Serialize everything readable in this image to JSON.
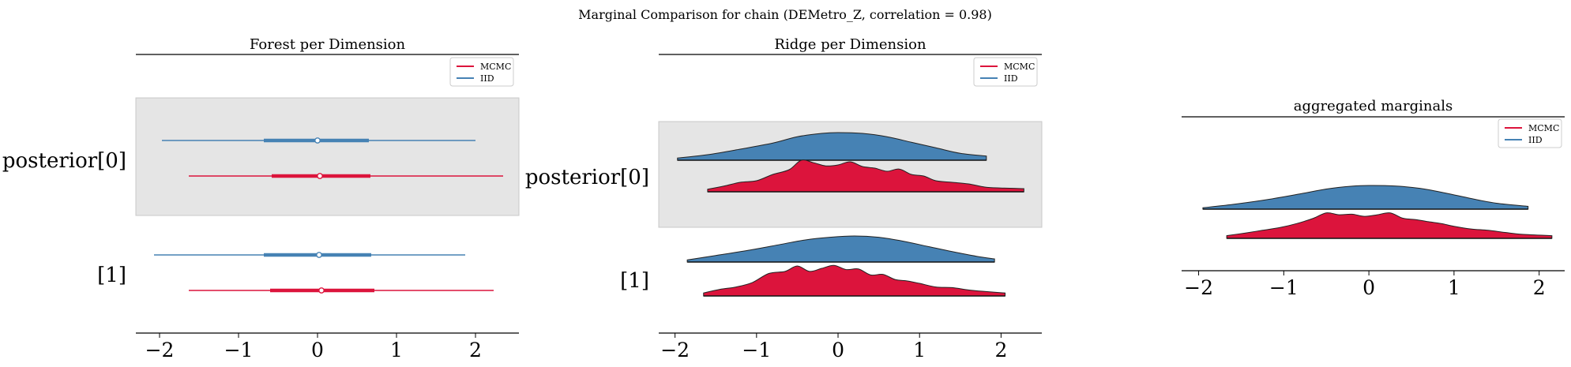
{
  "suptitle": "Marginal Comparison for chain (DEMetro_Z, correlation = 0.98)",
  "colors": {
    "mcmc": "#dc143c",
    "iid": "#4682b4",
    "shade": "#e5e5e5"
  },
  "chart_data": [
    {
      "type": "forest",
      "title": "Forest per Dimension",
      "xlim": [
        -2.3,
        2.55
      ],
      "xticks": [
        -2,
        -1,
        0,
        1,
        2
      ],
      "xtick_labels": [
        "−2",
        "−1",
        "0",
        "1",
        "2"
      ],
      "legend": {
        "position": "top-right",
        "entries": [
          "MCMC",
          "IID"
        ]
      },
      "rows": [
        {
          "label": "posterior[0]",
          "shaded": true,
          "series": [
            {
              "name": "IID",
              "hdi": [
                -1.97,
                2.0
              ],
              "iqr": [
                -0.68,
                0.65
              ],
              "median": 0.0
            },
            {
              "name": "MCMC",
              "hdi": [
                -1.63,
                2.35
              ],
              "iqr": [
                -0.58,
                0.67
              ],
              "median": 0.03
            }
          ]
        },
        {
          "label": "[1]",
          "shaded": false,
          "series": [
            {
              "name": "IID",
              "hdi": [
                -2.07,
                1.87
              ],
              "iqr": [
                -0.68,
                0.68
              ],
              "median": 0.02
            },
            {
              "name": "MCMC",
              "hdi": [
                -1.63,
                2.23
              ],
              "iqr": [
                -0.6,
                0.72
              ],
              "median": 0.05
            }
          ]
        }
      ]
    },
    {
      "type": "ridge",
      "title": "Ridge per Dimension",
      "xlim": [
        -2.2,
        2.5
      ],
      "xticks": [
        -2,
        -1,
        0,
        1,
        2
      ],
      "xtick_labels": [
        "−2",
        "−1",
        "0",
        "1",
        "2"
      ],
      "legend": {
        "position": "top-right",
        "entries": [
          "MCMC",
          "IID"
        ]
      },
      "rows": [
        {
          "label": "posterior[0]",
          "shaded": true,
          "series": [
            {
              "name": "IID",
              "range": [
                -1.97,
                1.82
              ],
              "x": [
                -1.97,
                -1.6,
                -1.2,
                -0.8,
                -0.5,
                -0.2,
                0.0,
                0.3,
                0.6,
                0.9,
                1.2,
                1.5,
                1.82
              ],
              "y": [
                0.08,
                0.2,
                0.4,
                0.62,
                0.85,
                0.97,
                1.0,
                0.97,
                0.85,
                0.65,
                0.45,
                0.25,
                0.15
              ]
            },
            {
              "name": "MCMC",
              "range": [
                -1.6,
                2.28
              ],
              "x": [
                -1.6,
                -1.4,
                -1.2,
                -1.0,
                -0.8,
                -0.6,
                -0.45,
                -0.3,
                -0.15,
                0.0,
                0.15,
                0.3,
                0.45,
                0.6,
                0.75,
                0.9,
                1.05,
                1.2,
                1.4,
                1.6,
                1.8,
                2.0,
                2.28
              ],
              "y": [
                0.08,
                0.18,
                0.3,
                0.35,
                0.55,
                0.7,
                1.0,
                0.92,
                0.82,
                0.85,
                0.95,
                0.8,
                0.75,
                0.65,
                0.72,
                0.55,
                0.5,
                0.35,
                0.3,
                0.25,
                0.15,
                0.12,
                0.1
              ]
            }
          ]
        },
        {
          "label": "[1]",
          "shaded": false,
          "series": [
            {
              "name": "IID",
              "range": [
                -1.85,
                1.92
              ],
              "x": [
                -1.85,
                -1.5,
                -1.1,
                -0.7,
                -0.4,
                -0.1,
                0.2,
                0.5,
                0.8,
                1.1,
                1.4,
                1.7,
                1.92
              ],
              "y": [
                0.08,
                0.25,
                0.45,
                0.68,
                0.85,
                0.95,
                1.0,
                0.95,
                0.8,
                0.6,
                0.4,
                0.22,
                0.12
              ]
            },
            {
              "name": "MCMC",
              "range": [
                -1.65,
                2.05
              ],
              "x": [
                -1.65,
                -1.45,
                -1.25,
                -1.05,
                -0.85,
                -0.65,
                -0.5,
                -0.35,
                -0.2,
                -0.05,
                0.1,
                0.25,
                0.4,
                0.55,
                0.7,
                0.85,
                1.0,
                1.2,
                1.4,
                1.6,
                1.8,
                2.05
              ],
              "y": [
                0.1,
                0.22,
                0.3,
                0.45,
                0.75,
                0.82,
                1.0,
                0.82,
                0.92,
                1.02,
                0.88,
                0.9,
                0.7,
                0.72,
                0.55,
                0.5,
                0.42,
                0.3,
                0.28,
                0.2,
                0.15,
                0.1
              ]
            }
          ]
        }
      ]
    },
    {
      "type": "ridge",
      "title": "aggregated marginals",
      "xlim": [
        -2.2,
        2.3
      ],
      "xticks": [
        -2,
        -1,
        0,
        1,
        2
      ],
      "xtick_labels": [
        "−2",
        "−1",
        "0",
        "1",
        "2"
      ],
      "legend": {
        "position": "top-right",
        "entries": [
          "MCMC",
          "IID"
        ]
      },
      "rows": [
        {
          "label": "",
          "shaded": false,
          "series": [
            {
              "name": "IID",
              "range": [
                -1.95,
                1.87
              ],
              "x": [
                -1.95,
                -1.6,
                -1.2,
                -0.8,
                -0.5,
                -0.2,
                0.0,
                0.3,
                0.6,
                0.9,
                1.2,
                1.5,
                1.87
              ],
              "y": [
                0.06,
                0.2,
                0.4,
                0.65,
                0.85,
                0.97,
                1.0,
                0.98,
                0.88,
                0.68,
                0.45,
                0.25,
                0.12
              ]
            },
            {
              "name": "MCMC",
              "range": [
                -1.67,
                2.15
              ],
              "x": [
                -1.67,
                -1.45,
                -1.25,
                -1.05,
                -0.85,
                -0.65,
                -0.5,
                -0.35,
                -0.2,
                -0.05,
                0.1,
                0.25,
                0.4,
                0.55,
                0.7,
                0.85,
                1.0,
                1.2,
                1.4,
                1.6,
                1.8,
                2.15
              ],
              "y": [
                0.1,
                0.2,
                0.3,
                0.4,
                0.55,
                0.75,
                0.95,
                0.88,
                0.9,
                0.82,
                0.88,
                0.95,
                0.75,
                0.7,
                0.62,
                0.55,
                0.45,
                0.35,
                0.3,
                0.22,
                0.15,
                0.1
              ]
            }
          ]
        }
      ]
    }
  ]
}
